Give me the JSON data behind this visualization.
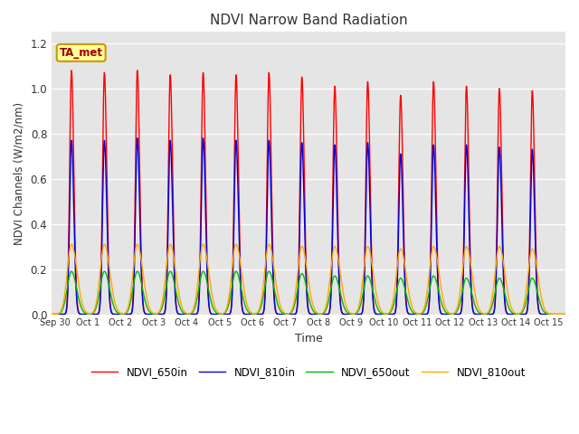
{
  "title": "NDVI Narrow Band Radiation",
  "xlabel": "Time",
  "ylabel": "NDVI Channels (W/m2/nm)",
  "ylim": [
    0.0,
    1.25
  ],
  "xlim": [
    -0.1,
    15.5
  ],
  "annotation": "TA_met",
  "colors": {
    "NDVI_650in": "#ff0000",
    "NDVI_810in": "#0000dd",
    "NDVI_650out": "#00bb00",
    "NDVI_810out": "#ffaa00"
  },
  "tick_labels": [
    "Sep 30",
    "Oct 1",
    "Oct 2",
    "Oct 3",
    "Oct 4",
    "Oct 5",
    "Oct 6",
    "Oct 7",
    "Oct 8",
    "Oct 9",
    "Oct 10",
    "Oct 11",
    "Oct 12",
    "Oct 13",
    "Oct 14",
    "Oct 15"
  ],
  "tick_positions": [
    0,
    1,
    2,
    3,
    4,
    5,
    6,
    7,
    8,
    9,
    10,
    11,
    12,
    13,
    14,
    15
  ],
  "yticks": [
    0.0,
    0.2,
    0.4,
    0.6,
    0.8,
    1.0,
    1.2
  ],
  "peak_650in": [
    1.08,
    1.07,
    1.08,
    1.06,
    1.07,
    1.06,
    1.07,
    1.05,
    1.01,
    1.03,
    0.97,
    1.03,
    1.01,
    1.0,
    0.99
  ],
  "peak_810in": [
    0.77,
    0.77,
    0.78,
    0.77,
    0.78,
    0.77,
    0.77,
    0.76,
    0.75,
    0.76,
    0.71,
    0.75,
    0.75,
    0.74,
    0.73
  ],
  "peak_650out": [
    0.19,
    0.19,
    0.19,
    0.19,
    0.19,
    0.19,
    0.19,
    0.18,
    0.17,
    0.17,
    0.16,
    0.17,
    0.16,
    0.16,
    0.16
  ],
  "peak_810out": [
    0.31,
    0.31,
    0.31,
    0.31,
    0.31,
    0.31,
    0.31,
    0.3,
    0.3,
    0.3,
    0.29,
    0.3,
    0.3,
    0.3,
    0.29
  ],
  "sigma_narrow": 0.055,
  "sigma_wide": 0.13,
  "background_color": "#e5e5e5",
  "linewidth": 1.0,
  "figsize": [
    6.4,
    4.8
  ],
  "dpi": 100
}
